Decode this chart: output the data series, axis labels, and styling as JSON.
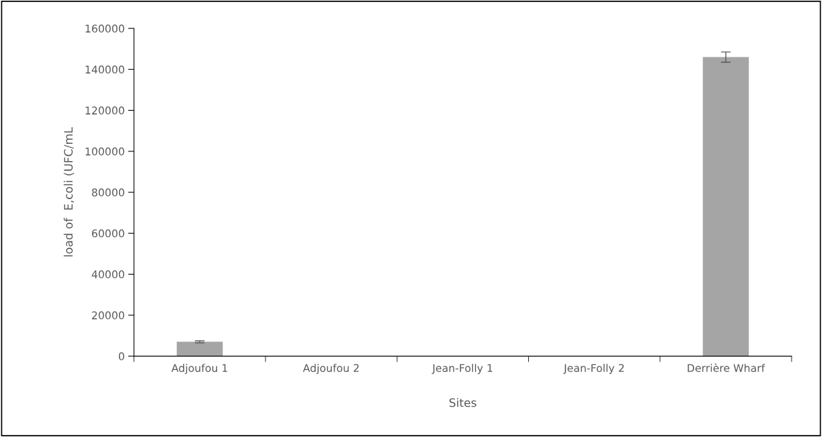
{
  "chart_data": {
    "type": "bar",
    "xlabel": "Sites",
    "ylabel": "load of  E,coli (UFC/mL",
    "categories": [
      "Adjoufou 1",
      "Adjoufou 2",
      "Jean-Folly 1",
      "Jean-Folly 2",
      "Derrière Wharf"
    ],
    "values": [
      7000,
      0,
      0,
      0,
      146000
    ],
    "errors": [
      500,
      null,
      null,
      null,
      2500
    ],
    "color": "#a5a5a5",
    "ylim": [
      0,
      160000
    ],
    "yticks": [
      0,
      20000,
      40000,
      60000,
      80000,
      100000,
      120000,
      140000,
      160000
    ],
    "grid": false,
    "legend": false
  }
}
